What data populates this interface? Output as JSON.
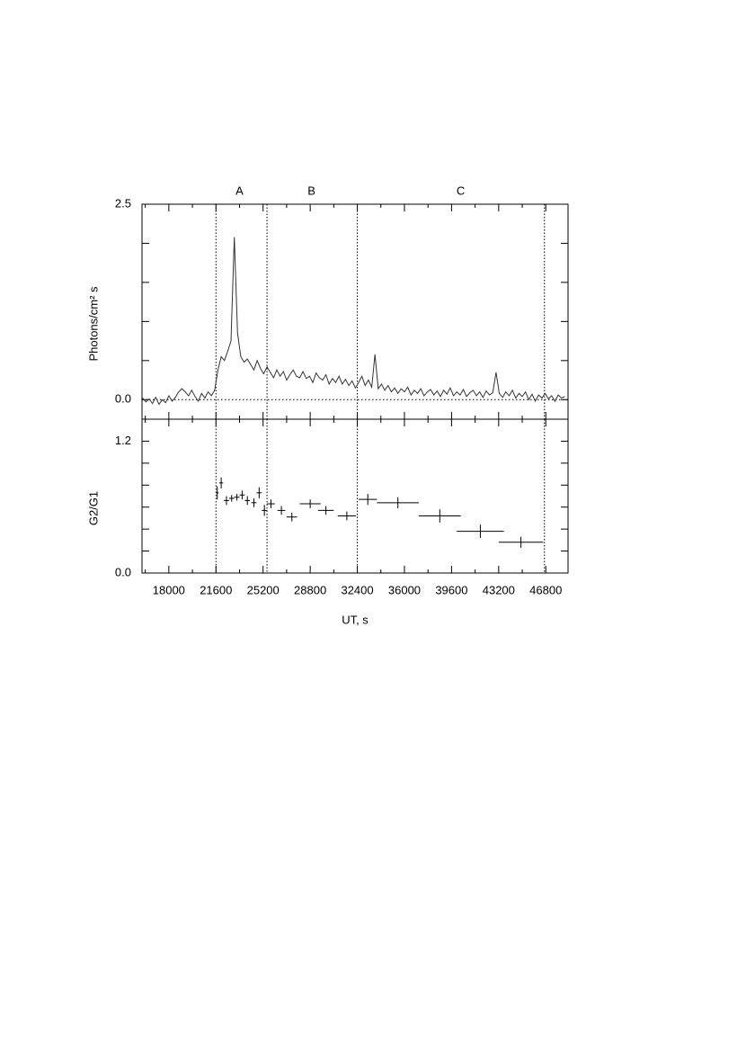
{
  "chart_data": [
    {
      "type": "line",
      "ylabel": "Photons/cm² s",
      "xlim": [
        15950,
        48500
      ],
      "xticks": [
        18000,
        21600,
        25200,
        28800,
        32400,
        36000,
        39600,
        43200,
        46800
      ],
      "xticks_minor": [
        16200,
        19800,
        23400,
        27000,
        30600,
        34200,
        37800,
        41400,
        45000
      ],
      "ylim": [
        -0.25,
        2.5
      ],
      "yticks": [
        {
          "value": 0,
          "label": "0.0"
        },
        {
          "value": 2.5,
          "label": "2.5"
        }
      ],
      "yticks_minor": [
        0.5,
        1.0,
        1.5,
        2.0
      ],
      "hline": 0,
      "vlines": [
        21600,
        25500,
        32400,
        46700
      ],
      "regions": [
        {
          "label": "A",
          "x": 23400
        },
        {
          "label": "B",
          "x": 28900
        },
        {
          "label": "C",
          "x": 40300
        }
      ],
      "color": "#333333",
      "x": [
        16000,
        16250,
        16500,
        16750,
        17000,
        17250,
        17500,
        17750,
        18000,
        18250,
        18500,
        18750,
        19000,
        19250,
        19500,
        19750,
        20000,
        20250,
        20500,
        20750,
        21000,
        21250,
        21500,
        21750,
        22000,
        22250,
        22500,
        22750,
        23000,
        23250,
        23500,
        23750,
        24000,
        24250,
        24500,
        24750,
        25000,
        25250,
        25500,
        25750,
        26000,
        26250,
        26500,
        26750,
        27000,
        27250,
        27500,
        27750,
        28000,
        28250,
        28500,
        28750,
        29000,
        29250,
        29500,
        29750,
        30000,
        30250,
        30500,
        30750,
        31000,
        31250,
        31500,
        31750,
        32000,
        32250,
        32500,
        32750,
        33000,
        33250,
        33500,
        33750,
        34000,
        34250,
        34500,
        34750,
        35000,
        35250,
        35500,
        35750,
        36000,
        36250,
        36500,
        36750,
        37000,
        37250,
        37500,
        37750,
        38000,
        38250,
        38500,
        38750,
        39000,
        39250,
        39500,
        39750,
        40000,
        40250,
        40500,
        40750,
        41000,
        41250,
        41500,
        41750,
        42000,
        42250,
        42500,
        42750,
        43000,
        43250,
        43500,
        43750,
        44000,
        44250,
        44500,
        44750,
        45000,
        45250,
        45500,
        45750,
        46000,
        46250,
        46500,
        46750,
        47000,
        47250,
        47500,
        47750,
        48000,
        48250
      ],
      "values": [
        0.02,
        -0.03,
        0.01,
        -0.05,
        0.03,
        -0.06,
        0.0,
        -0.04,
        0.05,
        -0.02,
        0.03,
        0.1,
        0.14,
        0.1,
        0.05,
        0.12,
        0.04,
        -0.02,
        0.08,
        0.02,
        0.1,
        0.05,
        0.12,
        0.38,
        0.55,
        0.5,
        0.62,
        0.75,
        2.08,
        0.85,
        0.55,
        0.48,
        0.52,
        0.45,
        0.38,
        0.5,
        0.4,
        0.33,
        0.42,
        0.35,
        0.28,
        0.38,
        0.3,
        0.36,
        0.25,
        0.32,
        0.38,
        0.3,
        0.28,
        0.36,
        0.27,
        0.3,
        0.22,
        0.34,
        0.28,
        0.25,
        0.32,
        0.2,
        0.27,
        0.22,
        0.3,
        0.2,
        0.26,
        0.18,
        0.24,
        0.15,
        0.22,
        0.3,
        0.18,
        0.25,
        0.16,
        0.58,
        0.14,
        0.2,
        0.12,
        0.18,
        0.1,
        0.15,
        0.08,
        0.14,
        0.1,
        0.16,
        0.06,
        0.12,
        0.08,
        0.14,
        0.05,
        0.1,
        0.13,
        0.06,
        0.11,
        0.04,
        0.12,
        0.07,
        0.15,
        0.05,
        0.1,
        0.06,
        0.13,
        0.04,
        0.09,
        0.12,
        0.05,
        0.1,
        0.03,
        0.11,
        0.06,
        0.09,
        0.35,
        0.08,
        0.03,
        0.1,
        0.05,
        0.12,
        0.02,
        0.08,
        0.04,
        0.1,
        0.0,
        0.07,
        -0.02,
        0.06,
        0.02,
        0.08,
        0.01,
        0.05,
        -0.02,
        0.06,
        0.02,
        0.04
      ]
    },
    {
      "type": "errorbar",
      "xlabel": "UT, s",
      "ylabel": "G2/G1",
      "xlim": [
        15950,
        48500
      ],
      "xticks": [
        18000,
        21600,
        25200,
        28800,
        32400,
        36000,
        39600,
        43200,
        46800
      ],
      "xticks_minor": [
        16200,
        19800,
        23400,
        27000,
        30600,
        34200,
        37800,
        41400,
        45000
      ],
      "ylim": [
        0,
        1.4
      ],
      "yticks": [
        {
          "value": 0,
          "label": "0.0"
        },
        {
          "value": 1.2,
          "label": "1.2"
        }
      ],
      "yticks_minor": [
        0.2,
        0.4,
        0.6,
        0.8,
        1.0
      ],
      "vlines": [
        21600,
        25500,
        32400,
        46700
      ],
      "color": "#000000",
      "x": [
        21700,
        22000,
        22400,
        22800,
        23200,
        23600,
        24000,
        24500,
        24900,
        25300,
        25800,
        26600,
        27400,
        28800,
        30000,
        31600,
        33200,
        35500,
        38700,
        41800,
        44900
      ],
      "xerr": [
        100,
        150,
        200,
        200,
        200,
        200,
        200,
        200,
        200,
        200,
        300,
        300,
        400,
        800,
        600,
        700,
        700,
        1600,
        1600,
        1800,
        1700
      ],
      "values": [
        0.73,
        0.82,
        0.66,
        0.68,
        0.69,
        0.71,
        0.66,
        0.64,
        0.73,
        0.57,
        0.63,
        0.57,
        0.51,
        0.63,
        0.57,
        0.52,
        0.67,
        0.64,
        0.52,
        0.38,
        0.28
      ],
      "yerr": [
        0.06,
        0.05,
        0.04,
        0.03,
        0.03,
        0.04,
        0.04,
        0.04,
        0.05,
        0.05,
        0.04,
        0.04,
        0.04,
        0.04,
        0.04,
        0.04,
        0.05,
        0.05,
        0.06,
        0.06,
        0.05
      ]
    }
  ]
}
